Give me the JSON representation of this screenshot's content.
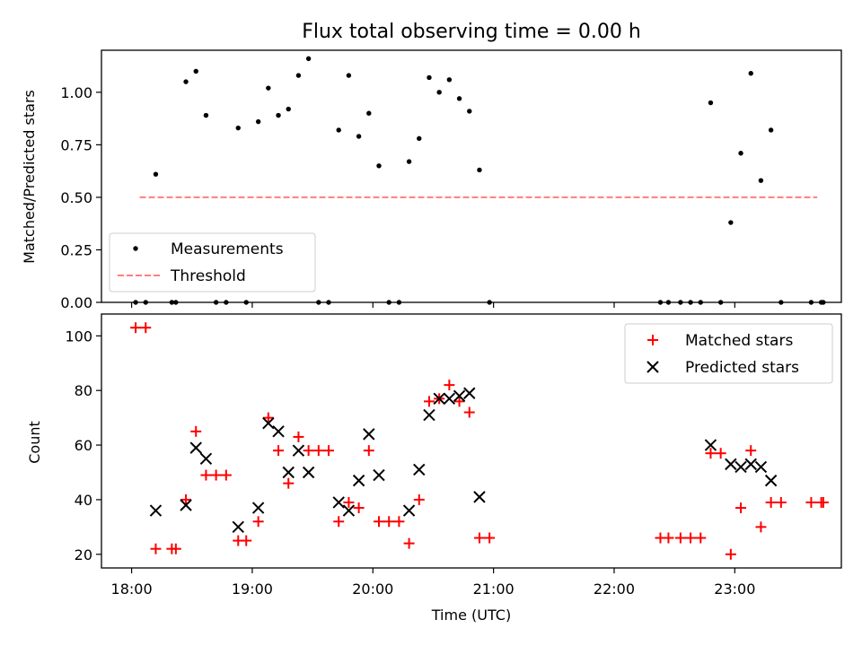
{
  "chart_data": [
    {
      "type": "scatter",
      "title": "Flux total observing time = 0.00 h",
      "xlabel": "",
      "ylabel": "Matched/Predicted stars",
      "xlim": [
        "17:45",
        "23:53"
      ],
      "ylim": [
        0,
        1.2
      ],
      "yticks": [
        "0.00",
        "0.25",
        "0.50",
        "0.75",
        "1.00"
      ],
      "grid": false,
      "legend": {
        "position": "lower-left",
        "entries": [
          "Measurements",
          "Threshold"
        ]
      },
      "colors": {
        "measurements": "#000000",
        "threshold": "#ff7f7f"
      },
      "series": [
        {
          "name": "Measurements",
          "marker": "dot",
          "points": [
            [
              "18:02",
              0
            ],
            [
              "18:07",
              0
            ],
            [
              "18:12",
              0.61
            ],
            [
              "18:20",
              0
            ],
            [
              "18:22",
              0
            ],
            [
              "18:27",
              1.05
            ],
            [
              "18:32",
              1.1
            ],
            [
              "18:37",
              0.89
            ],
            [
              "18:42",
              0
            ],
            [
              "18:47",
              0
            ],
            [
              "18:53",
              0.83
            ],
            [
              "18:57",
              0
            ],
            [
              "19:03",
              0.86
            ],
            [
              "19:08",
              1.02
            ],
            [
              "19:13",
              0.89
            ],
            [
              "19:18",
              0.92
            ],
            [
              "19:23",
              1.08
            ],
            [
              "19:28",
              1.16
            ],
            [
              "19:33",
              0
            ],
            [
              "19:38",
              0
            ],
            [
              "19:43",
              0.82
            ],
            [
              "19:48",
              1.08
            ],
            [
              "19:53",
              0.79
            ],
            [
              "19:58",
              0.9
            ],
            [
              "20:03",
              0.65
            ],
            [
              "20:08",
              0
            ],
            [
              "20:13",
              0
            ],
            [
              "20:18",
              0.67
            ],
            [
              "20:23",
              0.78
            ],
            [
              "20:28",
              1.07
            ],
            [
              "20:33",
              1.0
            ],
            [
              "20:38",
              1.06
            ],
            [
              "20:43",
              0.97
            ],
            [
              "20:48",
              0.91
            ],
            [
              "20:53",
              0.63
            ],
            [
              "20:58",
              0
            ],
            [
              "22:23",
              0
            ],
            [
              "22:27",
              0
            ],
            [
              "22:33",
              0
            ],
            [
              "22:38",
              0
            ],
            [
              "22:43",
              0
            ],
            [
              "22:48",
              0.95
            ],
            [
              "22:53",
              0
            ],
            [
              "22:58",
              0.38
            ],
            [
              "23:03",
              0.71
            ],
            [
              "23:08",
              1.09
            ],
            [
              "23:13",
              0.58
            ],
            [
              "23:18",
              0.82
            ],
            [
              "23:23",
              0
            ],
            [
              "23:38",
              0
            ],
            [
              "23:43",
              0
            ],
            [
              "23:44",
              0
            ]
          ]
        },
        {
          "name": "Threshold",
          "marker": "dashed-line",
          "points": [
            [
              "18:04",
              0.5
            ],
            [
              "23:41",
              0.5
            ]
          ]
        }
      ]
    },
    {
      "type": "scatter",
      "title": "",
      "xlabel": "Time (UTC)",
      "ylabel": "Count",
      "xlim": [
        "17:45",
        "23:53"
      ],
      "ylim": [
        15,
        108
      ],
      "xticks": [
        "18:00",
        "19:00",
        "20:00",
        "21:00",
        "22:00",
        "23:00"
      ],
      "yticks": [
        "20",
        "40",
        "60",
        "80",
        "100"
      ],
      "grid": false,
      "legend": {
        "position": "top-right",
        "entries": [
          "Matched stars",
          "Predicted stars"
        ]
      },
      "colors": {
        "matched": "#ff0000",
        "predicted": "#000000"
      },
      "series": [
        {
          "name": "Matched stars",
          "marker": "plus",
          "points": [
            [
              "18:02",
              103
            ],
            [
              "18:07",
              103
            ],
            [
              "18:12",
              22
            ],
            [
              "18:20",
              22
            ],
            [
              "18:22",
              22
            ],
            [
              "18:27",
              40
            ],
            [
              "18:32",
              65
            ],
            [
              "18:37",
              49
            ],
            [
              "18:42",
              49
            ],
            [
              "18:47",
              49
            ],
            [
              "18:53",
              25
            ],
            [
              "18:57",
              25
            ],
            [
              "19:03",
              32
            ],
            [
              "19:08",
              70
            ],
            [
              "19:13",
              58
            ],
            [
              "19:18",
              46
            ],
            [
              "19:23",
              63
            ],
            [
              "19:28",
              58
            ],
            [
              "19:33",
              58
            ],
            [
              "19:38",
              58
            ],
            [
              "19:43",
              32
            ],
            [
              "19:48",
              39
            ],
            [
              "19:53",
              37
            ],
            [
              "19:58",
              58
            ],
            [
              "20:03",
              32
            ],
            [
              "20:08",
              32
            ],
            [
              "20:13",
              32
            ],
            [
              "20:18",
              24
            ],
            [
              "20:23",
              40
            ],
            [
              "20:28",
              76
            ],
            [
              "20:33",
              77
            ],
            [
              "20:38",
              82
            ],
            [
              "20:43",
              76
            ],
            [
              "20:48",
              72
            ],
            [
              "20:53",
              26
            ],
            [
              "20:58",
              26
            ],
            [
              "22:23",
              26
            ],
            [
              "22:27",
              26
            ],
            [
              "22:33",
              26
            ],
            [
              "22:38",
              26
            ],
            [
              "22:43",
              26
            ],
            [
              "22:48",
              57
            ],
            [
              "22:53",
              57
            ],
            [
              "22:58",
              20
            ],
            [
              "23:03",
              37
            ],
            [
              "23:08",
              58
            ],
            [
              "23:13",
              30
            ],
            [
              "23:18",
              39
            ],
            [
              "23:23",
              39
            ],
            [
              "23:38",
              39
            ],
            [
              "23:43",
              39
            ],
            [
              "23:44",
              39
            ]
          ]
        },
        {
          "name": "Predicted stars",
          "marker": "x",
          "points": [
            [
              "18:12",
              36
            ],
            [
              "18:27",
              38
            ],
            [
              "18:32",
              59
            ],
            [
              "18:37",
              55
            ],
            [
              "18:53",
              30
            ],
            [
              "19:03",
              37
            ],
            [
              "19:08",
              68
            ],
            [
              "19:13",
              65
            ],
            [
              "19:18",
              50
            ],
            [
              "19:23",
              58
            ],
            [
              "19:28",
              50
            ],
            [
              "19:43",
              39
            ],
            [
              "19:48",
              36
            ],
            [
              "19:53",
              47
            ],
            [
              "19:58",
              64
            ],
            [
              "20:03",
              49
            ],
            [
              "20:18",
              36
            ],
            [
              "20:23",
              51
            ],
            [
              "20:28",
              71
            ],
            [
              "20:33",
              77
            ],
            [
              "20:38",
              77
            ],
            [
              "20:43",
              78
            ],
            [
              "20:48",
              79
            ],
            [
              "20:53",
              41
            ],
            [
              "22:48",
              60
            ],
            [
              "22:58",
              53
            ],
            [
              "23:03",
              52
            ],
            [
              "23:08",
              53
            ],
            [
              "23:13",
              52
            ],
            [
              "23:18",
              47
            ]
          ]
        }
      ]
    }
  ]
}
